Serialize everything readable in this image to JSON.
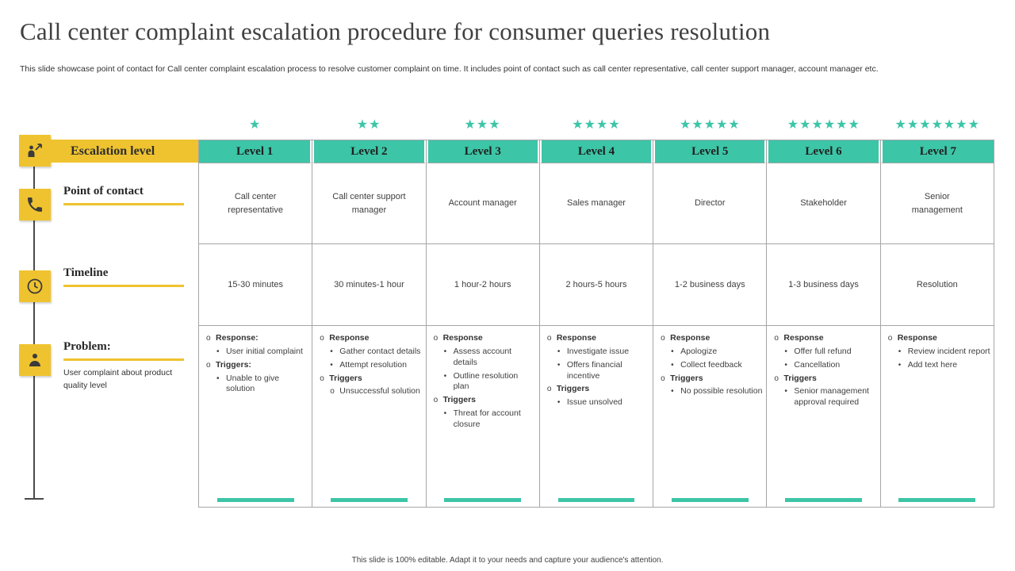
{
  "title": "Call center complaint escalation procedure for consumer queries resolution",
  "subtitle": "This slide showcase point of contact for Call center complaint escalation process to resolve customer complaint on time. It includes point of contact such as call center representative, call center support manager, account manager etc.",
  "footer": "This slide is 100% editable. Adapt it to your needs and capture your audience's attention.",
  "colors": {
    "teal": "#3CC5A7",
    "yellow": "#EFC32F",
    "dark_text": "#3F3F3F",
    "border_gray": "#A6A6A6"
  },
  "left_rail": {
    "escalation_label": "Escalation level",
    "contact_label": "Point of contact",
    "timeline_label": "Timeline",
    "problem_label": "Problem:",
    "problem_desc": "User complaint about product quality level",
    "icons": [
      "escalation-person-arrow-icon",
      "phone-contact-icon",
      "timeline-clock-icon",
      "person-icon"
    ]
  },
  "levels": [
    {
      "stars": 1,
      "label": "Level 1",
      "contact": "Call center representative",
      "timeline": "15-30 minutes",
      "problem": [
        {
          "b": "o",
          "bold": true,
          "ind": 0,
          "text": "Response:"
        },
        {
          "b": "•",
          "bold": false,
          "ind": 1,
          "text": "User initial complaint"
        },
        {
          "b": "o",
          "bold": true,
          "ind": 0,
          "text": "Triggers:"
        },
        {
          "b": "•",
          "bold": false,
          "ind": 1,
          "text": "Unable to give solution"
        }
      ]
    },
    {
      "stars": 2,
      "label": "Level 2",
      "contact": "Call center support manager",
      "timeline": "30 minutes-1 hour",
      "problem": [
        {
          "b": "o",
          "bold": true,
          "ind": 0,
          "text": "Response"
        },
        {
          "b": "•",
          "bold": false,
          "ind": 1,
          "text": "Gather contact details"
        },
        {
          "b": "•",
          "bold": false,
          "ind": 1,
          "text": "Attempt resolution"
        },
        {
          "b": "o",
          "bold": true,
          "ind": 0,
          "text": "Triggers"
        },
        {
          "b": "o",
          "bold": false,
          "ind": 1,
          "text": "Unsuccessful solution"
        }
      ]
    },
    {
      "stars": 3,
      "label": "Level 3",
      "contact": "Account manager",
      "timeline": "1 hour-2 hours",
      "problem": [
        {
          "b": "o",
          "bold": true,
          "ind": 0,
          "text": "Response"
        },
        {
          "b": "•",
          "bold": false,
          "ind": 1,
          "text": "Assess account details"
        },
        {
          "b": "•",
          "bold": false,
          "ind": 1,
          "text": "Outline resolution plan"
        },
        {
          "b": "o",
          "bold": true,
          "ind": 0,
          "text": "Triggers"
        },
        {
          "b": "•",
          "bold": false,
          "ind": 1,
          "text": "Threat for account closure"
        }
      ]
    },
    {
      "stars": 4,
      "label": "Level 4",
      "contact": "Sales manager",
      "timeline": "2 hours-5 hours",
      "problem": [
        {
          "b": "o",
          "bold": true,
          "ind": 0,
          "text": "Response"
        },
        {
          "b": "•",
          "bold": false,
          "ind": 1,
          "text": "Investigate issue"
        },
        {
          "b": "•",
          "bold": false,
          "ind": 1,
          "text": "Offers financial incentive"
        },
        {
          "b": "o",
          "bold": true,
          "ind": 0,
          "text": "Triggers"
        },
        {
          "b": "•",
          "bold": false,
          "ind": 1,
          "text": "Issue unsolved"
        }
      ]
    },
    {
      "stars": 5,
      "label": "Level 5",
      "contact": "Director",
      "timeline": "1-2 business days",
      "problem": [
        {
          "b": "o",
          "bold": true,
          "ind": 0,
          "text": "Response"
        },
        {
          "b": "•",
          "bold": false,
          "ind": 1,
          "text": "Apologize"
        },
        {
          "b": "•",
          "bold": false,
          "ind": 1,
          "text": "Collect feedback"
        },
        {
          "b": "o",
          "bold": true,
          "ind": 0,
          "text": "Triggers"
        },
        {
          "b": "•",
          "bold": false,
          "ind": 1,
          "text": "No possible resolution"
        }
      ]
    },
    {
      "stars": 6,
      "label": "Level 6",
      "contact": "Stakeholder",
      "timeline": "1-3 business days",
      "problem": [
        {
          "b": "o",
          "bold": true,
          "ind": 0,
          "text": "Response"
        },
        {
          "b": "•",
          "bold": false,
          "ind": 1,
          "text": "Offer full refund"
        },
        {
          "b": "•",
          "bold": false,
          "ind": 1,
          "text": "Cancellation"
        },
        {
          "b": "o",
          "bold": true,
          "ind": 0,
          "text": "Triggers"
        },
        {
          "b": "•",
          "bold": false,
          "ind": 1,
          "text": "Senior management approval required"
        }
      ]
    },
    {
      "stars": 7,
      "label": "Level 7",
      "contact": "Senior management",
      "timeline": "Resolution",
      "problem": [
        {
          "b": "o",
          "bold": true,
          "ind": 0,
          "text": "Response"
        },
        {
          "b": "•",
          "bold": false,
          "ind": 1,
          "text": "Review incident report"
        },
        {
          "b": "•",
          "bold": false,
          "ind": 1,
          "text": "Add text here"
        }
      ]
    }
  ]
}
